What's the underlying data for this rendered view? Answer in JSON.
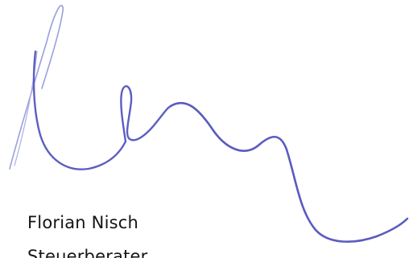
{
  "signature_block": {
    "name": "Florian Nisch",
    "title": "Steuerberater",
    "ink_color": "#5a5bbf",
    "ink_color_light": "#8a90d8"
  }
}
